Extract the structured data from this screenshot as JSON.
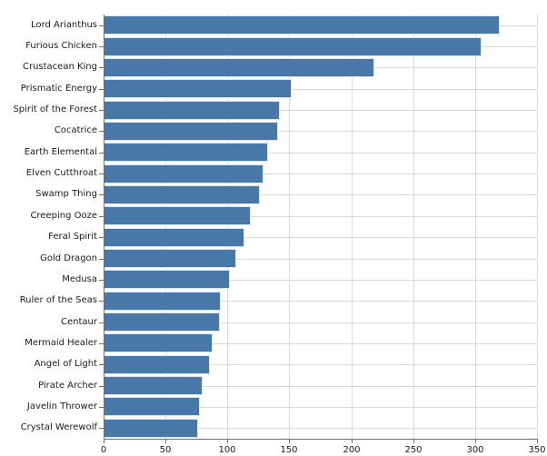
{
  "chart_data": {
    "type": "bar",
    "orientation": "horizontal",
    "title": "",
    "xlabel": "",
    "ylabel": "",
    "categories": [
      "Lord Arianthus",
      "Furious Chicken",
      "Crustacean King",
      "Prismatic Energy",
      "Spirit of the Forest",
      "Cocatrice",
      "Earth Elemental",
      "Elven Cutthroat",
      "Swamp Thing",
      "Creeping Ooze",
      "Feral Spirit",
      "Gold Dragon",
      "Medusa",
      "Ruler of the Seas",
      "Centaur",
      "Mermaid Healer",
      "Angel of Light",
      "Pirate Archer",
      "Javelin Thrower",
      "Crystal Werewolf"
    ],
    "values": [
      320,
      305,
      219,
      152,
      142,
      141,
      133,
      129,
      126,
      119,
      114,
      107,
      102,
      95,
      94,
      88,
      86,
      80,
      78,
      76
    ],
    "xlim": [
      0,
      350
    ],
    "x_ticks": [
      0,
      50,
      100,
      150,
      200,
      250,
      300,
      350
    ],
    "grid": true,
    "legend": "none",
    "colors": {
      "bar_fill": "#4878a8",
      "bar_edge": "#dbe7f2",
      "gridline": "#d9d9d9",
      "spine": "#707070",
      "text": "#1a1a1a",
      "background": "#ffffff"
    }
  }
}
